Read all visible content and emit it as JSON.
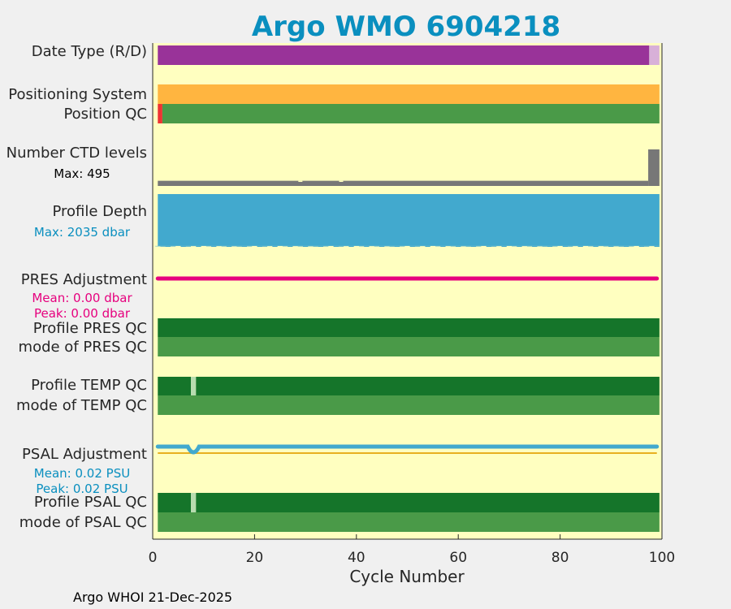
{
  "colors": {
    "background": "#f0f0f0",
    "plot_bg": "#ffffc0",
    "title": "#0a8fbf",
    "purple": "#993399",
    "light_purple": "#d8b0d8",
    "orange": "#ffb540",
    "green": "#4a9a48",
    "dark_green": "#15752a",
    "red": "#ee3333",
    "gray": "#777777",
    "blue": "#42a9ce",
    "magenta": "#e6007e",
    "pale_green": "#b8dcb0",
    "gold": "#e8b020",
    "text": "#262626",
    "blue_text": "#0a8fbf",
    "magenta_text": "#e6007e",
    "black_text": "#000000"
  },
  "chart_data": {
    "type": "timeline",
    "title": "Argo WMO 6904218",
    "xlabel": "Cycle Number",
    "xlim": [
      0,
      100
    ],
    "xticks": [
      0,
      20,
      40,
      60,
      80,
      100
    ],
    "n_cycles": 99,
    "rows": [
      {
        "id": "date-type",
        "label": "Date Type (R/D)",
        "kind": "segments",
        "segments": [
          [
            1,
            97.5,
            "purple"
          ],
          [
            97.5,
            99.5,
            "light_purple"
          ]
        ]
      },
      {
        "id": "positioning-system",
        "label": "Positioning System",
        "kind": "segments",
        "segments": [
          [
            1,
            99.5,
            "orange"
          ]
        ]
      },
      {
        "id": "position-qc",
        "label": "Position QC",
        "kind": "segments",
        "segments": [
          [
            1,
            1.9,
            "red"
          ],
          [
            1.9,
            99.5,
            "green"
          ]
        ]
      },
      {
        "id": "ctd-levels",
        "label": "Number CTD levels",
        "sublabel": "Max: 495",
        "sublabel_color": "black_text",
        "kind": "levels",
        "max": 495,
        "base_value": 70,
        "dip_cycles": [
          29,
          37
        ],
        "dip_value": 55,
        "high_from_cycle": 97.3,
        "high_value": 495
      },
      {
        "id": "profile-depth",
        "label": "Profile Depth",
        "sublabel": "Max: 2035 dbar",
        "sublabel_color": "blue_text",
        "kind": "depth",
        "max": 2035,
        "base_value": 2000
      },
      {
        "id": "pres-adjustment",
        "label": "PRES Adjustment",
        "sublabels": [
          "Mean: 0.00 dbar",
          "Peak: 0.00 dbar"
        ],
        "sublabel_color": "magenta_text",
        "kind": "adjustment",
        "color": "magenta",
        "mean": 0.0,
        "peak": 0.0
      },
      {
        "id": "profile-pres-qc",
        "label": "Profile PRES QC",
        "kind": "segments",
        "segments": [
          [
            1,
            99.5,
            "dark_green"
          ]
        ]
      },
      {
        "id": "mode-pres-qc",
        "label": "mode of PRES QC",
        "kind": "segments",
        "segments": [
          [
            1,
            99.5,
            "green"
          ]
        ]
      },
      {
        "id": "profile-temp-qc",
        "label": "Profile TEMP QC",
        "kind": "segments",
        "segments": [
          [
            1,
            7.5,
            "dark_green"
          ],
          [
            7.5,
            8.5,
            "pale_green"
          ],
          [
            8.5,
            99.5,
            "dark_green"
          ]
        ]
      },
      {
        "id": "mode-temp-qc",
        "label": "mode of TEMP QC",
        "kind": "segments",
        "segments": [
          [
            1,
            99.5,
            "green"
          ]
        ]
      },
      {
        "id": "psal-adjustment",
        "label": "PSAL Adjustment",
        "sublabels": [
          "Mean: 0.02 PSU",
          "Peak: 0.02 PSU"
        ],
        "sublabel_color": "blue_text",
        "kind": "adjustment",
        "color": "blue",
        "mean": 0.02,
        "peak": 0.02,
        "dip_cycle": 8
      },
      {
        "id": "profile-psal-qc",
        "label": "Profile PSAL QC",
        "kind": "segments",
        "segments": [
          [
            1,
            7.5,
            "dark_green"
          ],
          [
            7.5,
            8.5,
            "pale_green"
          ],
          [
            8.5,
            99.5,
            "dark_green"
          ]
        ]
      },
      {
        "id": "mode-psal-qc",
        "label": "mode of PSAL QC",
        "kind": "segments",
        "segments": [
          [
            1,
            99.5,
            "green"
          ]
        ]
      }
    ]
  },
  "footer": "Argo WHOI 21-Dec-2025"
}
